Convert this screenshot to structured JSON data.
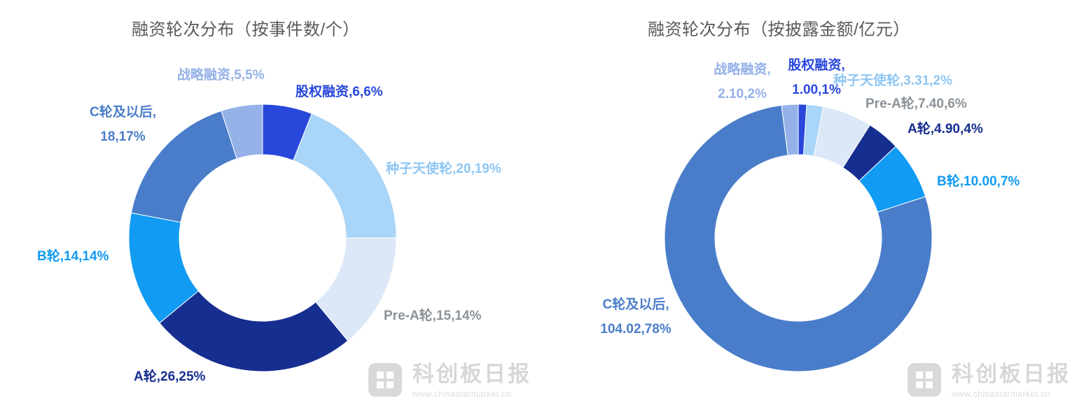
{
  "watermark": {
    "brand": "科创板日报",
    "site": "www.chinastarmarket.cn"
  },
  "chart_data": [
    {
      "type": "pie",
      "subtype": "donut",
      "title": "融资轮次分布（按事件数/个）",
      "value_unit": "个",
      "legend_position": "none",
      "segments": [
        {
          "key": "equity",
          "name": "股权融资",
          "value": 6,
          "pct": 6,
          "color": "#2847DB",
          "label_color": "#2847DB",
          "label_lines": [
            "股权融资,6,6%"
          ]
        },
        {
          "key": "seed-angel",
          "name": "种子天使轮",
          "value": 20,
          "pct": 19,
          "color": "#A8D5F8",
          "label_color": "#8FC6F2",
          "label_lines": [
            "种子天使轮,20,19%"
          ]
        },
        {
          "key": "pre-a",
          "name": "Pre-A轮",
          "value": 15,
          "pct": 14,
          "color": "#DCE8F7",
          "label_color": "#8A9299",
          "label_lines": [
            "Pre-A轮,15,14%"
          ]
        },
        {
          "key": "a-round",
          "name": "A轮",
          "value": 26,
          "pct": 25,
          "color": "#162E90",
          "label_color": "#162E90",
          "label_lines": [
            "A轮,26,25%"
          ]
        },
        {
          "key": "b-round",
          "name": "B轮",
          "value": 14,
          "pct": 14,
          "color": "#119BF3",
          "label_color": "#119BF3",
          "label_lines": [
            "B轮,14,14%"
          ]
        },
        {
          "key": "c-and-later",
          "name": "C轮及以后",
          "value": 18,
          "pct": 17,
          "color": "#4A7DC9",
          "label_color": "#4A7DC9",
          "label_lines": [
            "C轮及以后,",
            "18,17%"
          ]
        },
        {
          "key": "strategic",
          "name": "战略融资",
          "value": 5,
          "pct": 5,
          "color": "#95B1E8",
          "label_color": "#95B1E8",
          "label_lines": [
            "战略融资,5,5%"
          ]
        }
      ]
    },
    {
      "type": "pie",
      "subtype": "donut",
      "title": "融资轮次分布（按披露金额/亿元）",
      "value_unit": "亿元",
      "legend_position": "none",
      "segments": [
        {
          "key": "equity",
          "name": "股权融资",
          "value": 1.0,
          "pct": 1,
          "color": "#2847DB",
          "label_color": "#2847DB",
          "label_lines": [
            "股权融资,",
            "1.00,1%"
          ]
        },
        {
          "key": "seed-angel",
          "name": "种子天使轮",
          "value": 3.31,
          "pct": 2,
          "color": "#A8D5F8",
          "label_color": "#8FC6F2",
          "label_lines": [
            "种子天使轮,3.31,2%"
          ]
        },
        {
          "key": "pre-a",
          "name": "Pre-A轮",
          "value": 7.4,
          "pct": 6,
          "color": "#DCE8F7",
          "label_color": "#8A9299",
          "label_lines": [
            "Pre-A轮,7.40,6%"
          ]
        },
        {
          "key": "a-round",
          "name": "A轮",
          "value": 4.9,
          "pct": 4,
          "color": "#162E90",
          "label_color": "#162E90",
          "label_lines": [
            "A轮,4.90,4%"
          ]
        },
        {
          "key": "b-round",
          "name": "B轮",
          "value": 10.0,
          "pct": 7,
          "color": "#119BF3",
          "label_color": "#119BF3",
          "label_lines": [
            "B轮,10.00,7%"
          ]
        },
        {
          "key": "c-and-later",
          "name": "C轮及以后",
          "value": 104.02,
          "pct": 78,
          "color": "#4A7DC9",
          "label_color": "#4A7DC9",
          "label_lines": [
            "C轮及以后,",
            "104.02,78%"
          ]
        },
        {
          "key": "strategic",
          "name": "战略融资",
          "value": 2.1,
          "pct": 2,
          "color": "#95B1E8",
          "label_color": "#95B1E8",
          "label_lines": [
            "战略融资,",
            "2.10,2%"
          ]
        }
      ]
    }
  ]
}
